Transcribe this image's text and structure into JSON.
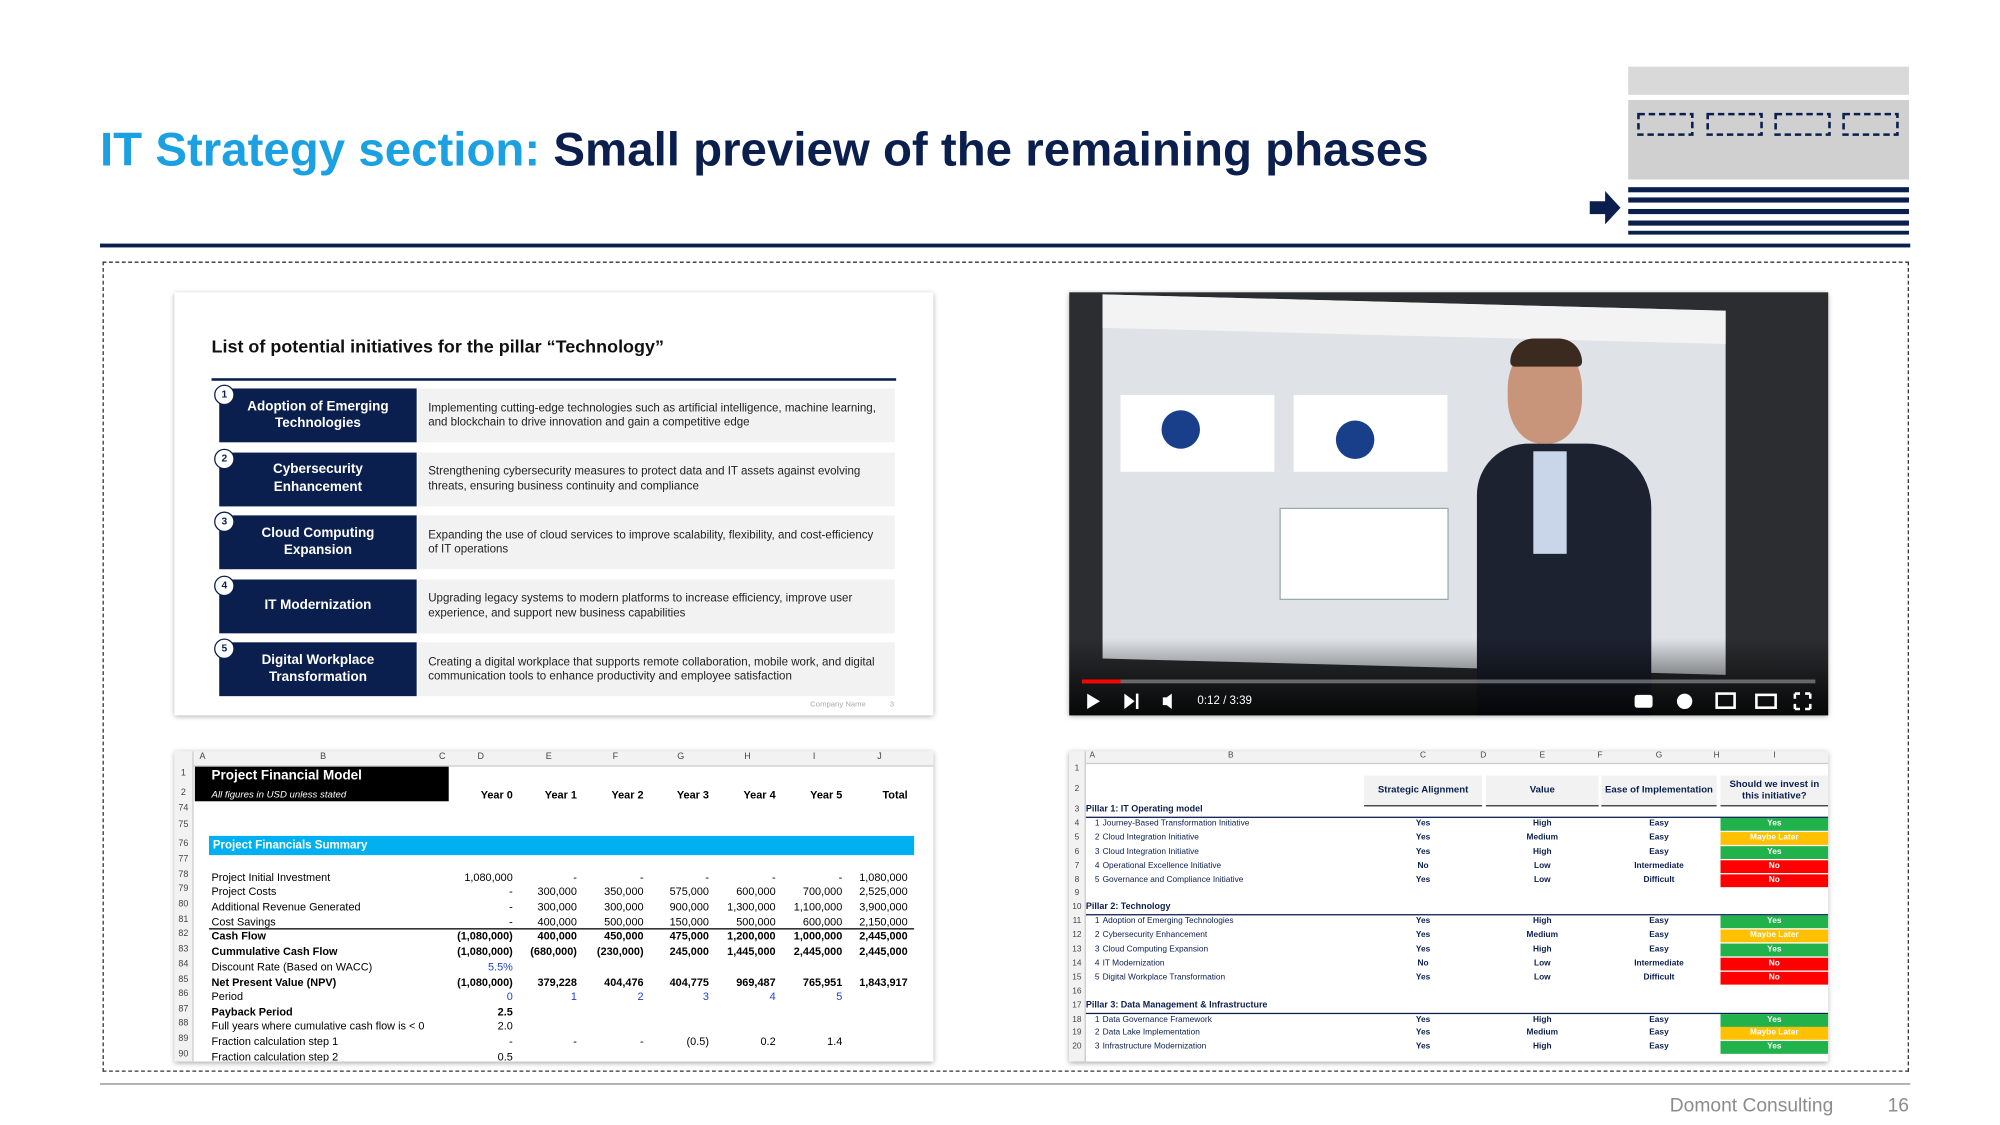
{
  "header": {
    "title_prefix": "IT Strategy section:",
    "title_main": "Small preview of the remaining phases"
  },
  "initiatives_slide": {
    "title": "List of potential initiatives for the pillar “Technology”",
    "items": [
      {
        "number": "1",
        "name": "Adoption of Emerging Technologies",
        "description": "Implementing cutting-edge technologies such as artificial intelligence, machine learning, and blockchain to drive innovation and gain a competitive edge"
      },
      {
        "number": "2",
        "name": "Cybersecurity Enhancement",
        "description": "Strengthening cybersecurity measures to protect data and IT assets against evolving threats, ensuring business continuity and compliance"
      },
      {
        "number": "3",
        "name": "Cloud Computing Expansion",
        "description": "Expanding the use of cloud services to improve scalability, flexibility, and cost-efficiency of IT operations"
      },
      {
        "number": "4",
        "name": "IT Modernization",
        "description": "Upgrading legacy systems to modern platforms to increase efficiency, improve user experience, and support new business capabilities"
      },
      {
        "number": "5",
        "name": "Digital Workplace Transformation",
        "description": "Creating a digital workplace that supports remote collaboration, mobile work, and digital communication tools to enhance productivity and employee satisfaction"
      }
    ],
    "footer": "Company Name",
    "page": "3"
  },
  "video": {
    "time": "0:12 / 3:39"
  },
  "financial_model": {
    "columns": [
      "A",
      "B",
      "C",
      "D",
      "E",
      "F",
      "G",
      "H",
      "I",
      "J"
    ],
    "row_numbers": [
      "1",
      "2",
      "74",
      "75",
      "76",
      "77",
      "78",
      "79",
      "80",
      "81",
      "82",
      "83",
      "84",
      "85",
      "86",
      "87",
      "88",
      "89",
      "90"
    ],
    "title": "Project Financial Model",
    "subtitle": "All figures in USD unless stated",
    "year_headers": {
      "D": "Year 0",
      "E": "Year 1",
      "F": "Year 2",
      "G": "Year 3",
      "H": "Year 4",
      "I": "Year 5",
      "J": "Total"
    },
    "section": "Project Financials Summary",
    "rows": [
      {
        "label": "Project Initial Investment",
        "values": {
          "D": "1,080,000",
          "E": "-",
          "F": "-",
          "G": "-",
          "H": "-",
          "I": "-",
          "J": "1,080,000"
        }
      },
      {
        "label": "Project Costs",
        "values": {
          "D": "-",
          "E": "300,000",
          "F": "350,000",
          "G": "575,000",
          "H": "600,000",
          "I": "700,000",
          "J": "2,525,000"
        }
      },
      {
        "label": "Additional Revenue Generated",
        "values": {
          "D": "-",
          "E": "300,000",
          "F": "300,000",
          "G": "900,000",
          "H": "1,300,000",
          "I": "1,100,000",
          "J": "3,900,000"
        }
      },
      {
        "label": "Cost Savings",
        "values": {
          "D": "-",
          "E": "400,000",
          "F": "500,000",
          "G": "150,000",
          "H": "500,000",
          "I": "600,000",
          "J": "2,150,000"
        }
      },
      {
        "label": "Cash Flow",
        "bold": true,
        "values": {
          "D": "(1,080,000)",
          "E": "400,000",
          "F": "450,000",
          "G": "475,000",
          "H": "1,200,000",
          "I": "1,000,000",
          "J": "2,445,000"
        }
      },
      {
        "label": "Cummulative Cash Flow",
        "bold": true,
        "values": {
          "D": "(1,080,000)",
          "E": "(680,000)",
          "F": "(230,000)",
          "G": "245,000",
          "H": "1,445,000",
          "I": "2,445,000",
          "J": "2,445,000"
        }
      },
      {
        "label": "Discount Rate (Based on WACC)",
        "value_color": "#1f3fd0",
        "values": {
          "D": "5.5%"
        }
      },
      {
        "label": "Net Present Value (NPV)",
        "bold": true,
        "values": {
          "D": "(1,080,000)",
          "E": "379,228",
          "F": "404,476",
          "G": "404,775",
          "H": "969,487",
          "I": "765,951",
          "J": "1,843,917"
        }
      },
      {
        "label": "Period",
        "value_color": "#1f3fd0",
        "values": {
          "D": "0",
          "E": "1",
          "F": "2",
          "G": "3",
          "H": "4",
          "I": "5"
        }
      },
      {
        "label": "Payback Period",
        "bold": true,
        "values": {
          "D": "2.5"
        }
      },
      {
        "label": "Full years where cumulative cash flow is < 0",
        "values": {
          "D": "2.0"
        }
      },
      {
        "label": "Fraction calculation step 1",
        "values": {
          "D": "-",
          "E": "-",
          "F": "-",
          "G": "(0.5)",
          "H": "0.2",
          "I": "1.4"
        }
      },
      {
        "label": "Fraction calculation step 2",
        "values": {
          "D": "0.5"
        }
      }
    ]
  },
  "evaluation_sheet": {
    "columns": [
      "A",
      "B",
      "C",
      "D",
      "E",
      "F",
      "G",
      "H",
      "I"
    ],
    "row_numbers": [
      "1",
      "2",
      "3",
      "4",
      "5",
      "6",
      "7",
      "8",
      "9",
      "10",
      "11",
      "12",
      "13",
      "14",
      "15",
      "16",
      "17",
      "18",
      "19",
      "20"
    ],
    "headers": {
      "alignment": "Strategic Alignment",
      "value": "Value",
      "ease": "Ease of Implementation",
      "invest": "Should we invest in this initiative?"
    },
    "invest_colors": {
      "Yes": "#21b24b",
      "Maybe Later": "#ffc000",
      "No": "#ff0000"
    },
    "pillars": [
      {
        "title": "Pillar 1: IT Operating model",
        "initiatives": [
          {
            "no": "1",
            "name": "Journey-Based Transformation Initiative",
            "alignment": "Yes",
            "value": "High",
            "ease": "Easy",
            "invest": "Yes"
          },
          {
            "no": "2",
            "name": "Cloud Integration Initiative",
            "alignment": "Yes",
            "value": "Medium",
            "ease": "Easy",
            "invest": "Maybe Later"
          },
          {
            "no": "3",
            "name": "Cloud Integration Initiative",
            "alignment": "Yes",
            "value": "High",
            "ease": "Easy",
            "invest": "Yes"
          },
          {
            "no": "4",
            "name": "Operational Excellence Initiative",
            "alignment": "No",
            "value": "Low",
            "ease": "Intermediate",
            "invest": "No"
          },
          {
            "no": "5",
            "name": "Governance and Compliance Initiative",
            "alignment": "Yes",
            "value": "Low",
            "ease": "Difficult",
            "invest": "No"
          }
        ]
      },
      {
        "title": "Pillar 2: Technology",
        "initiatives": [
          {
            "no": "1",
            "name": "Adoption of Emerging Technologies",
            "alignment": "Yes",
            "value": "High",
            "ease": "Easy",
            "invest": "Yes"
          },
          {
            "no": "2",
            "name": "Cybersecurity Enhancement",
            "alignment": "Yes",
            "value": "Medium",
            "ease": "Easy",
            "invest": "Maybe Later"
          },
          {
            "no": "3",
            "name": "Cloud Computing Expansion",
            "alignment": "Yes",
            "value": "High",
            "ease": "Easy",
            "invest": "Yes"
          },
          {
            "no": "4",
            "name": "IT Modernization",
            "alignment": "No",
            "value": "Low",
            "ease": "Intermediate",
            "invest": "No"
          },
          {
            "no": "5",
            "name": "Digital Workplace Transformation",
            "alignment": "Yes",
            "value": "Low",
            "ease": "Difficult",
            "invest": "No"
          }
        ]
      },
      {
        "title": "Pillar 3: Data Management & Infrastructure",
        "initiatives": [
          {
            "no": "1",
            "name": "Data Governance Framework",
            "alignment": "Yes",
            "value": "High",
            "ease": "Easy",
            "invest": "Yes"
          },
          {
            "no": "2",
            "name": "Data Lake Implementation",
            "alignment": "Yes",
            "value": "Medium",
            "ease": "Easy",
            "invest": "Maybe Later"
          },
          {
            "no": "3",
            "name": "Infrastructure Modernization",
            "alignment": "Yes",
            "value": "High",
            "ease": "Easy",
            "invest": "Yes"
          }
        ]
      }
    ]
  },
  "footer": {
    "company": "Domont Consulting",
    "page": "16"
  }
}
